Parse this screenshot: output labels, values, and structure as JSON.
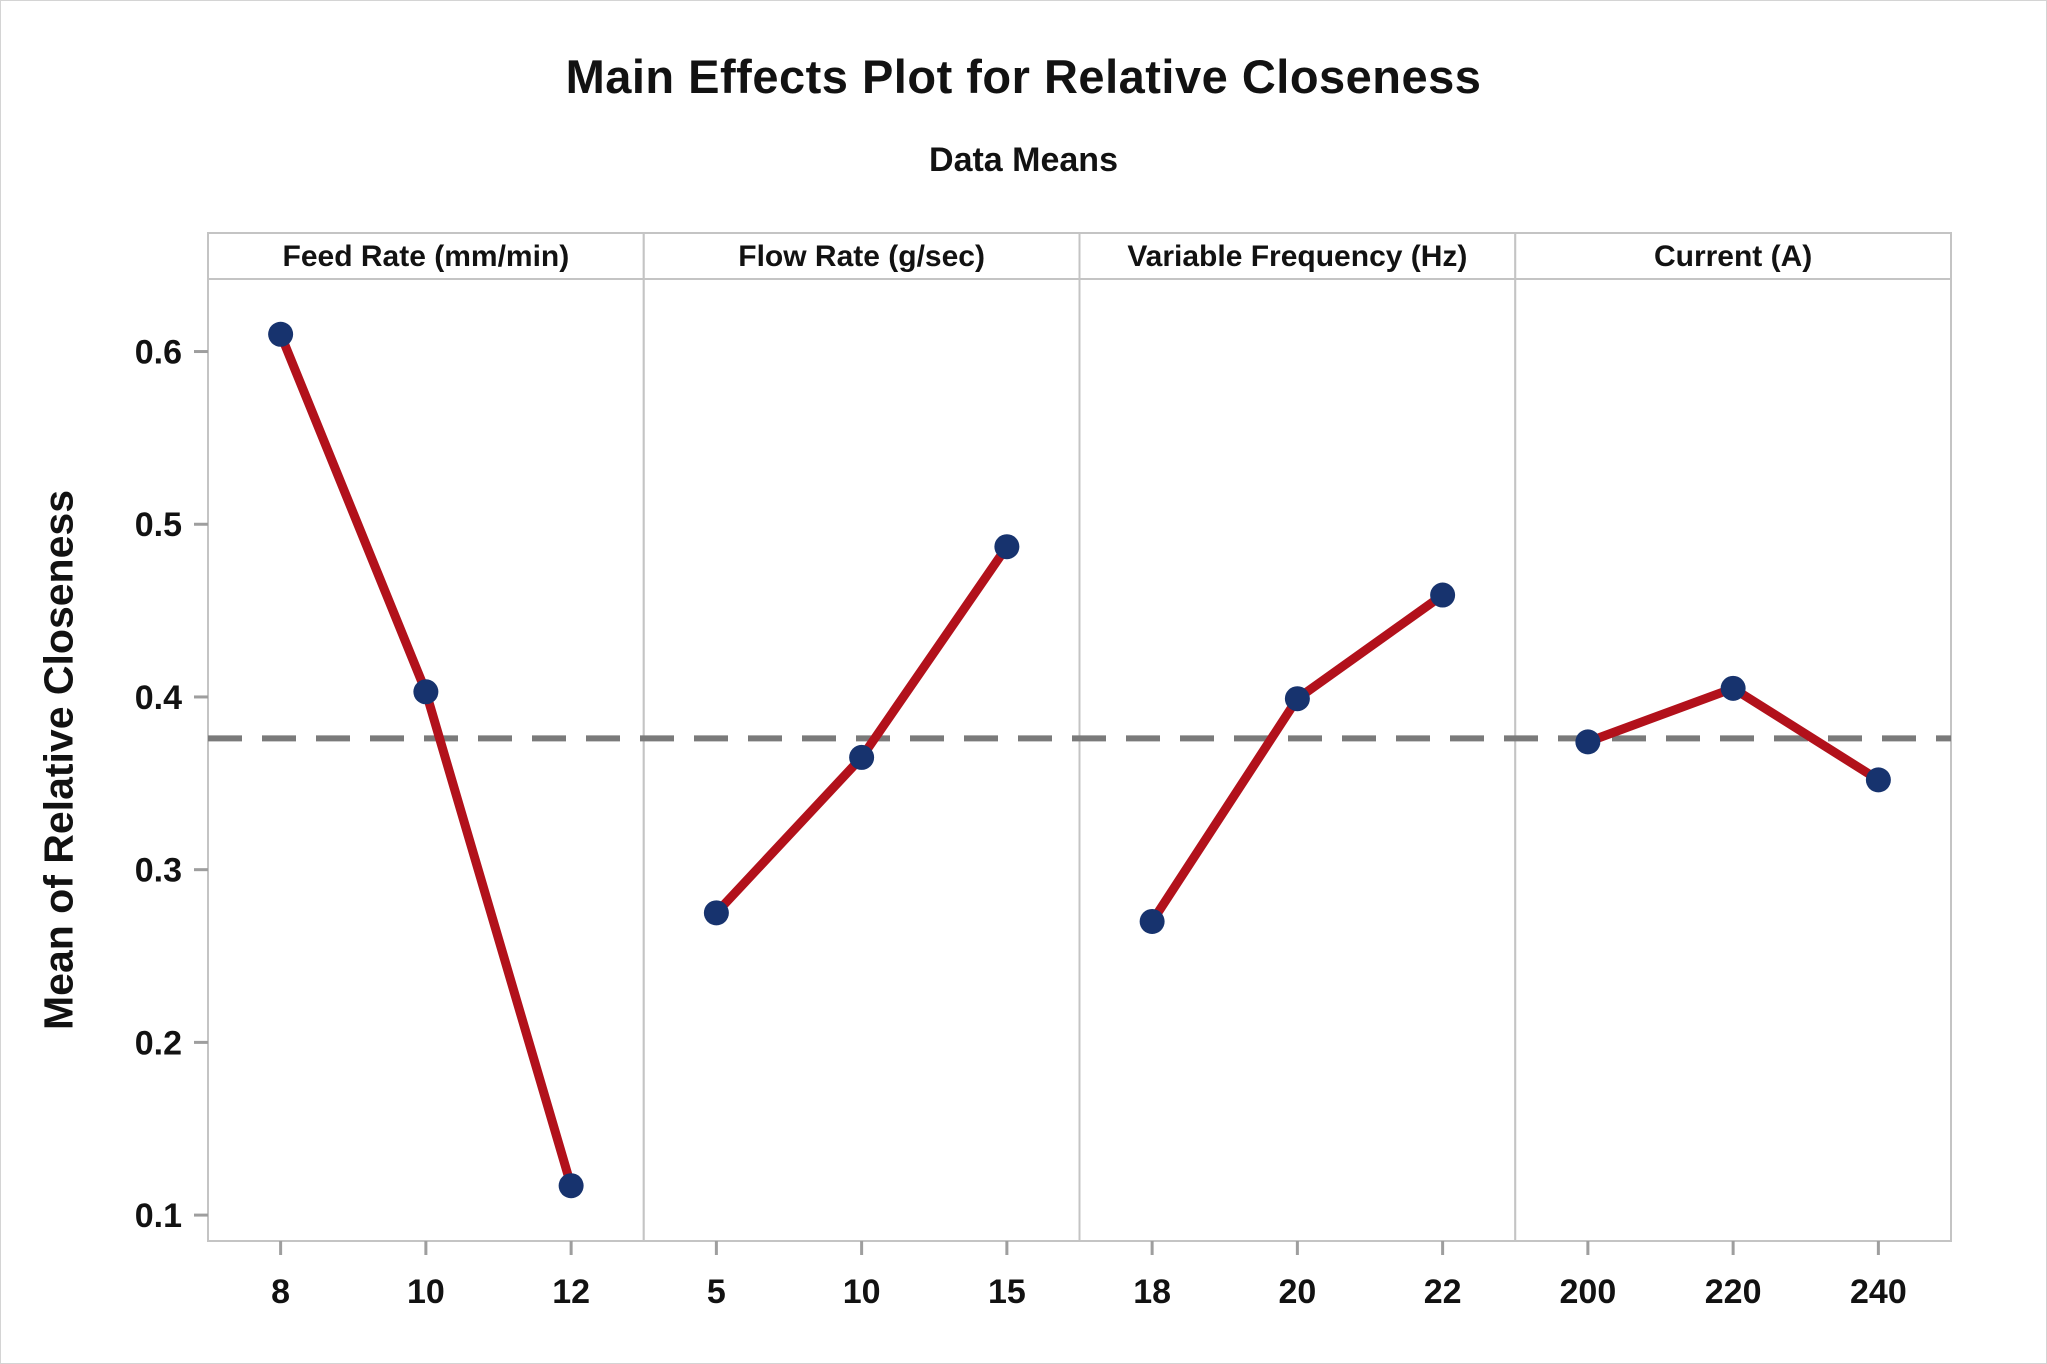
{
  "title": "Main Effects Plot for Relative Closeness",
  "subtitle": "Data Means",
  "y_axis_title": "Mean of Relative Closeness",
  "chart_data": {
    "type": "line",
    "description": "Main effects plot: one line series per factor panel, sharing a common y axis",
    "panels": [
      {
        "label": "Feed Rate (mm/min)",
        "categories": [
          "8",
          "10",
          "12"
        ],
        "values": [
          0.61,
          0.403,
          0.117
        ]
      },
      {
        "label": "Flow Rate (g/sec)",
        "categories": [
          "5",
          "10",
          "15"
        ],
        "values": [
          0.275,
          0.365,
          0.487
        ]
      },
      {
        "label": "Variable Frequency (Hz)",
        "categories": [
          "18",
          "20",
          "22"
        ],
        "values": [
          0.27,
          0.399,
          0.459
        ]
      },
      {
        "label": "Current (A)",
        "categories": [
          "200",
          "220",
          "240"
        ],
        "values": [
          0.374,
          0.405,
          0.352
        ]
      }
    ],
    "grand_mean": 0.376,
    "y_ticks": [
      0.6,
      0.5,
      0.4,
      0.3,
      0.2,
      0.1
    ],
    "y_tick_labels": [
      "0.6",
      "0.5",
      "0.4",
      "0.3",
      "0.2",
      "0.1"
    ],
    "ylim": [
      0.085,
      0.642
    ],
    "grid": false,
    "legend": false,
    "colors": {
      "line": "#b2111b",
      "marker": "#17336e",
      "mean_line": "#7a7a7a",
      "frame": "#c4c4c4",
      "tick": "#9e9e9e",
      "text": "#121212"
    }
  }
}
